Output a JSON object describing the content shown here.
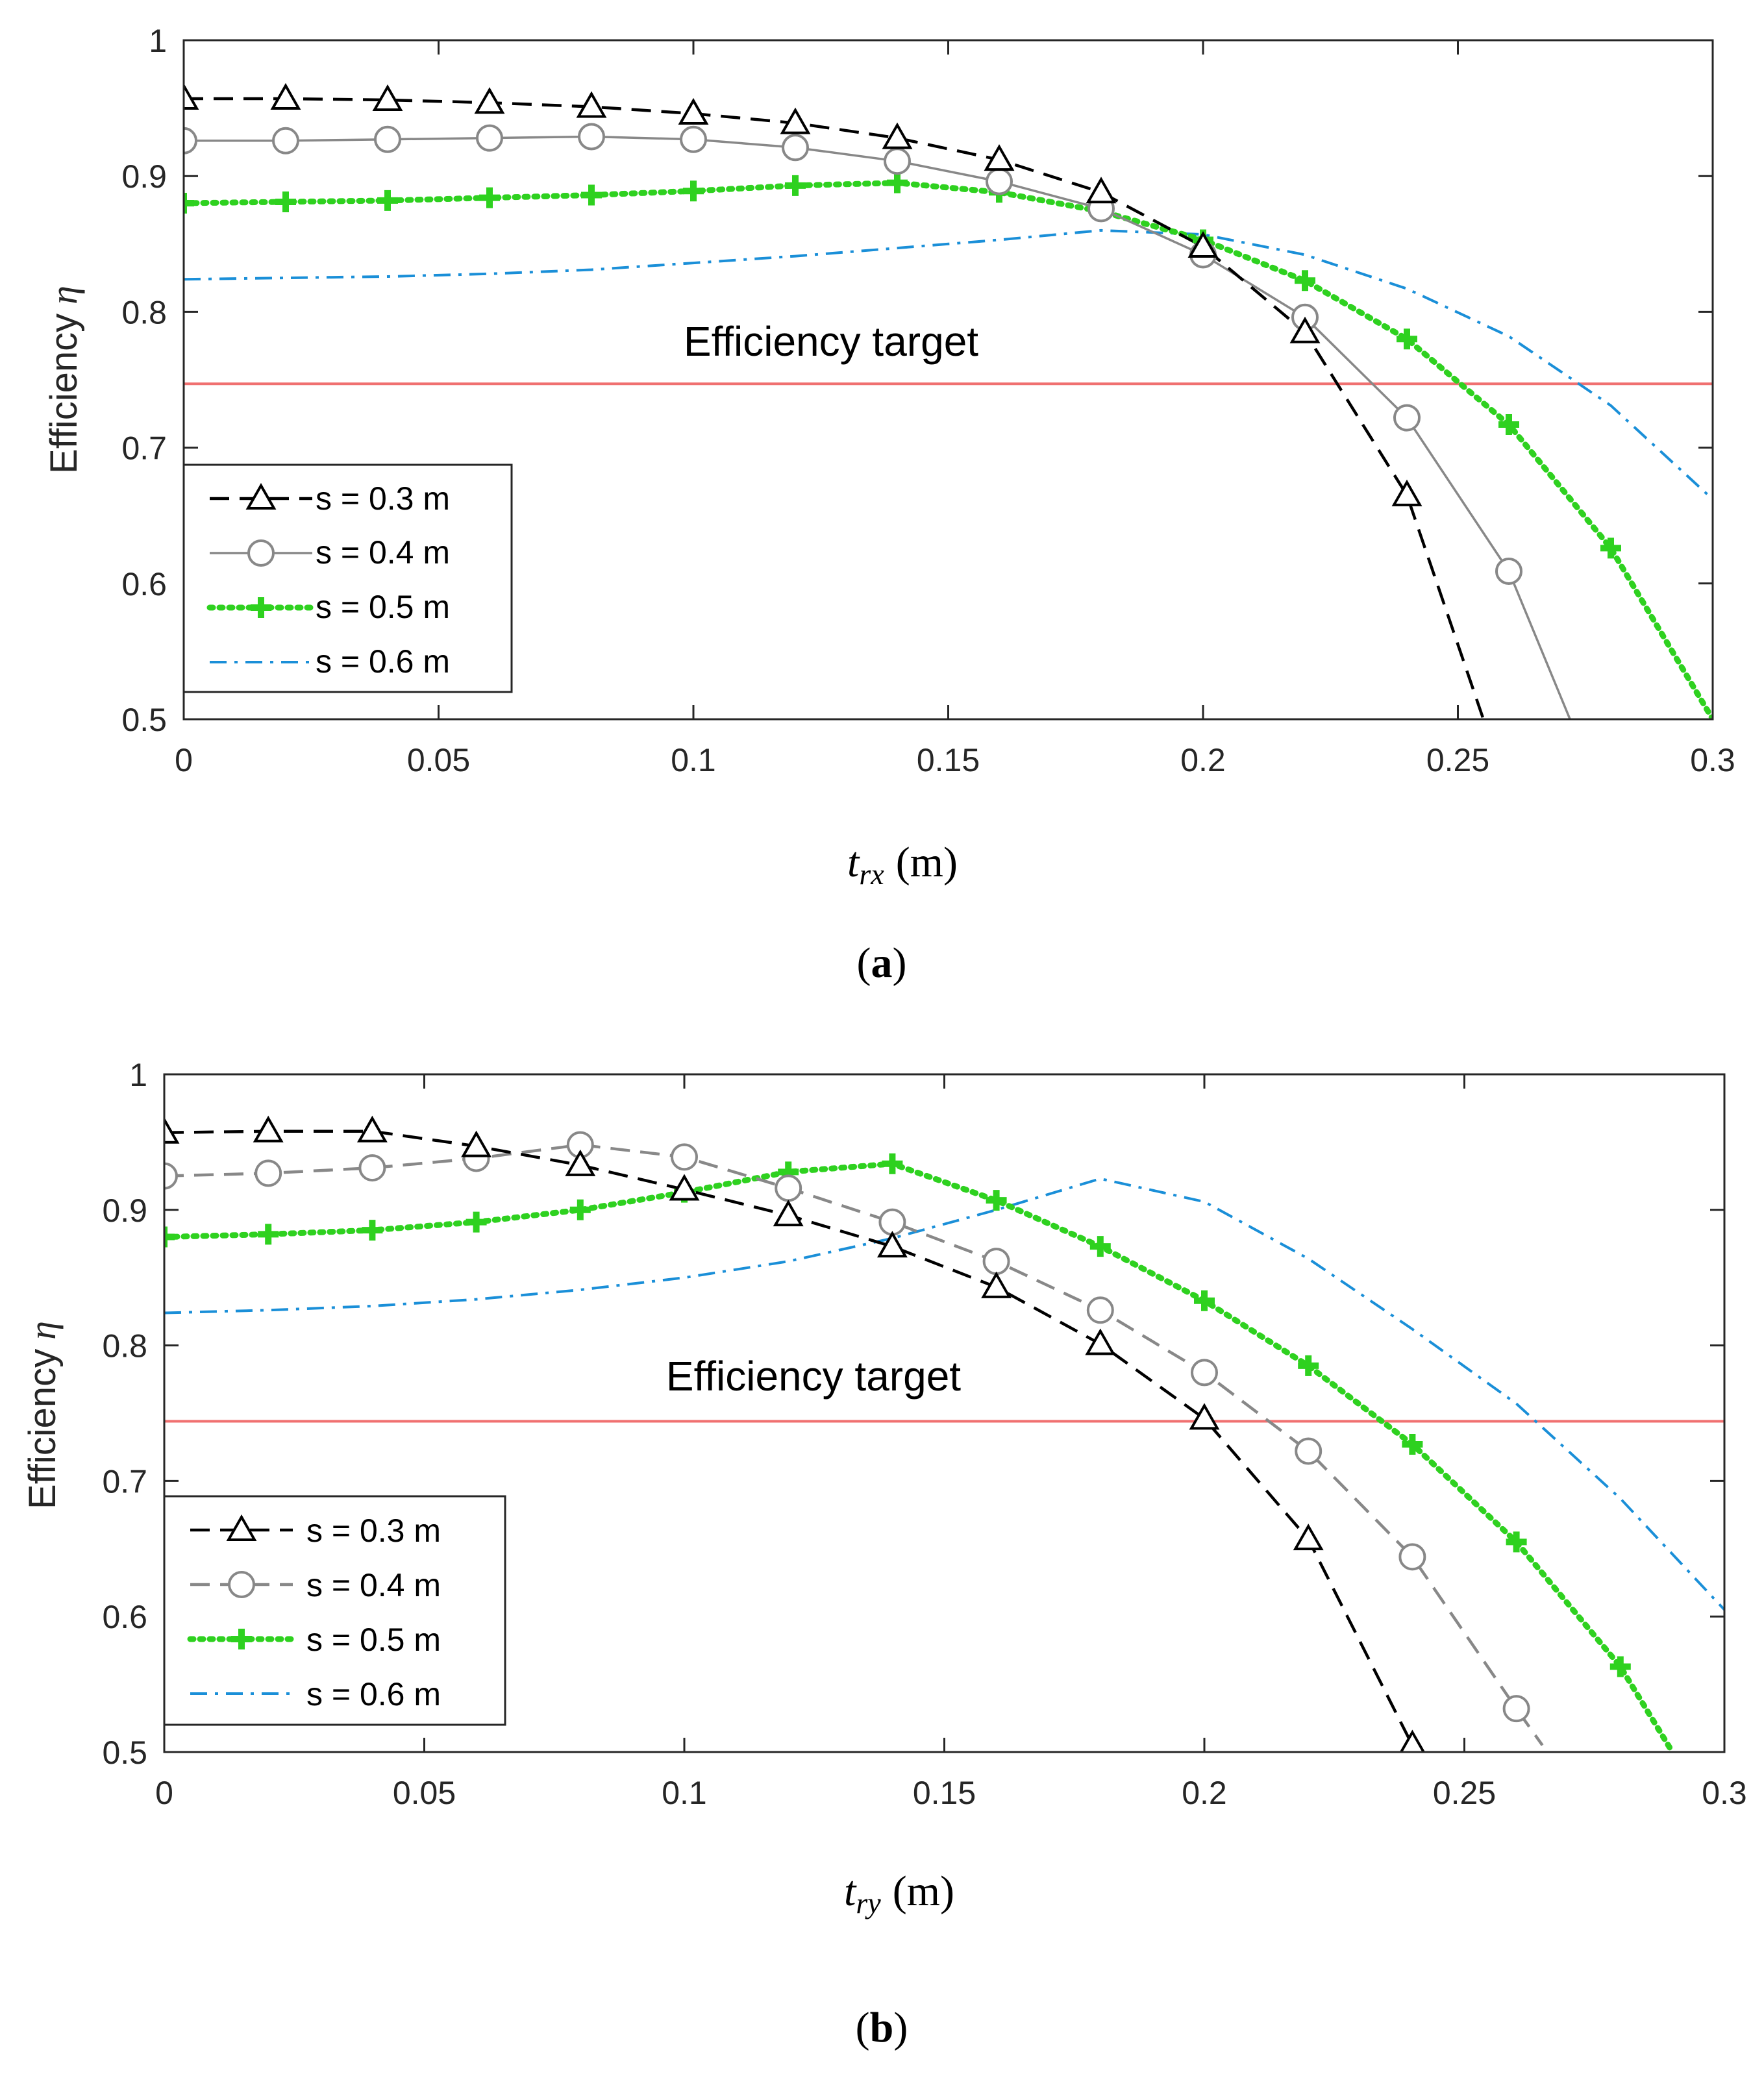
{
  "chart_data": [
    {
      "type": "line",
      "panel_label": "a",
      "xlabel": {
        "symbol": "t",
        "subscript": "rx",
        "unit": "(m)"
      },
      "ylabel": {
        "text": "Efficiency",
        "symbol": "η"
      },
      "xlim": [
        0,
        0.3
      ],
      "ylim": [
        0.5,
        1
      ],
      "xticks": [
        "0",
        "0.05",
        "0.1",
        "0.15",
        "0.2",
        "0.25",
        "0.3"
      ],
      "yticks": [
        "0.5",
        "0.6",
        "0.7",
        "0.8",
        "0.9",
        "1"
      ],
      "grid": false,
      "legend_position": "lower-left",
      "annotation": "Efficiency target",
      "target": 0.747,
      "target_color": "#f07070",
      "series": [
        {
          "name": "s = 0.3 m",
          "color": "#000000",
          "dash": "dashed",
          "marker": "triangle",
          "x": [
            0,
            0.02,
            0.04,
            0.06,
            0.08,
            0.1,
            0.12,
            0.14,
            0.16,
            0.18,
            0.2,
            0.22,
            0.24,
            0.255
          ],
          "y": [
            0.957,
            0.957,
            0.956,
            0.954,
            0.951,
            0.946,
            0.939,
            0.928,
            0.912,
            0.888,
            0.848,
            0.785,
            0.665,
            0.5
          ],
          "marked": [
            true,
            true,
            true,
            true,
            true,
            true,
            true,
            true,
            true,
            true,
            true,
            true,
            true,
            false
          ]
        },
        {
          "name": "s = 0.4 m",
          "color": "#888888",
          "dash": "solid",
          "marker": "circle",
          "x": [
            0,
            0.02,
            0.04,
            0.06,
            0.08,
            0.1,
            0.12,
            0.14,
            0.16,
            0.18,
            0.2,
            0.22,
            0.24,
            0.26,
            0.272
          ],
          "y": [
            0.926,
            0.926,
            0.927,
            0.928,
            0.929,
            0.927,
            0.921,
            0.911,
            0.896,
            0.876,
            0.842,
            0.796,
            0.722,
            0.609,
            0.5
          ],
          "marked": [
            true,
            true,
            true,
            true,
            true,
            true,
            true,
            true,
            true,
            true,
            true,
            true,
            true,
            true,
            false
          ]
        },
        {
          "name": "s = 0.5 m",
          "color": "#2ed11f",
          "dash": "dotted",
          "marker": "plus",
          "x": [
            0,
            0.02,
            0.04,
            0.06,
            0.08,
            0.1,
            0.12,
            0.14,
            0.16,
            0.18,
            0.2,
            0.22,
            0.24,
            0.26,
            0.28,
            0.3
          ],
          "y": [
            0.88,
            0.881,
            0.882,
            0.884,
            0.886,
            0.889,
            0.893,
            0.895,
            0.888,
            0.874,
            0.853,
            0.823,
            0.78,
            0.717,
            0.626,
            0.5
          ],
          "marked": [
            true,
            true,
            true,
            true,
            true,
            true,
            true,
            true,
            true,
            true,
            true,
            true,
            true,
            true,
            true,
            false
          ]
        },
        {
          "name": "s = 0.6 m",
          "color": "#1a8fd8",
          "dash": "dashdot",
          "marker": "none",
          "x": [
            0,
            0.02,
            0.04,
            0.06,
            0.08,
            0.1,
            0.12,
            0.14,
            0.16,
            0.18,
            0.2,
            0.22,
            0.24,
            0.26,
            0.28,
            0.3
          ],
          "y": [
            0.824,
            0.825,
            0.826,
            0.828,
            0.831,
            0.836,
            0.841,
            0.847,
            0.853,
            0.86,
            0.857,
            0.842,
            0.817,
            0.782,
            0.731,
            0.662
          ],
          "marked": []
        }
      ]
    },
    {
      "type": "line",
      "panel_label": "b",
      "xlabel": {
        "symbol": "t",
        "subscript": "ry",
        "unit": "(m)"
      },
      "ylabel": {
        "text": "Efficiency",
        "symbol": "η"
      },
      "xlim": [
        0,
        0.3
      ],
      "ylim": [
        0.5,
        1
      ],
      "xticks": [
        "0",
        "0.05",
        "0.1",
        "0.15",
        "0.2",
        "0.25",
        "0.3"
      ],
      "yticks": [
        "0.5",
        "0.6",
        "0.7",
        "0.8",
        "0.9",
        "1"
      ],
      "grid": false,
      "legend_position": "lower-left",
      "annotation": "Efficiency target",
      "target": 0.744,
      "target_color": "#f07070",
      "series": [
        {
          "name": "s = 0.3 m",
          "color": "#000000",
          "dash": "dashed",
          "marker": "triangle",
          "x": [
            0,
            0.02,
            0.04,
            0.06,
            0.08,
            0.1,
            0.12,
            0.14,
            0.16,
            0.18,
            0.2,
            0.22,
            0.24,
            0.245
          ],
          "y": [
            0.957,
            0.958,
            0.958,
            0.947,
            0.933,
            0.915,
            0.896,
            0.873,
            0.843,
            0.801,
            0.746,
            0.657,
            0.505,
            0.49
          ],
          "marked": [
            true,
            true,
            true,
            true,
            true,
            true,
            true,
            true,
            true,
            true,
            true,
            true,
            true,
            false
          ]
        },
        {
          "name": "s = 0.4 m",
          "color": "#888888",
          "dash": "dashed",
          "marker": "circle",
          "x": [
            0,
            0.02,
            0.04,
            0.06,
            0.08,
            0.1,
            0.12,
            0.14,
            0.16,
            0.18,
            0.2,
            0.22,
            0.24,
            0.26,
            0.265
          ],
          "y": [
            0.925,
            0.927,
            0.931,
            0.938,
            0.948,
            0.939,
            0.916,
            0.891,
            0.862,
            0.826,
            0.78,
            0.722,
            0.644,
            0.532,
            0.505
          ],
          "marked": [
            true,
            true,
            true,
            true,
            true,
            true,
            true,
            true,
            true,
            true,
            true,
            true,
            true,
            true,
            false
          ]
        },
        {
          "name": "s = 0.5 m",
          "color": "#2ed11f",
          "dash": "dotted",
          "marker": "plus",
          "x": [
            0,
            0.02,
            0.04,
            0.06,
            0.08,
            0.1,
            0.12,
            0.14,
            0.16,
            0.18,
            0.2,
            0.22,
            0.24,
            0.26,
            0.28,
            0.29
          ],
          "y": [
            0.88,
            0.882,
            0.885,
            0.891,
            0.9,
            0.913,
            0.928,
            0.934,
            0.907,
            0.873,
            0.833,
            0.785,
            0.727,
            0.655,
            0.563,
            0.5
          ],
          "marked": [
            true,
            true,
            true,
            true,
            true,
            true,
            true,
            true,
            true,
            true,
            true,
            true,
            true,
            true,
            true,
            false
          ]
        },
        {
          "name": "s = 0.6 m",
          "color": "#1a8fd8",
          "dash": "dashdot",
          "marker": "none",
          "x": [
            0,
            0.02,
            0.04,
            0.06,
            0.08,
            0.1,
            0.12,
            0.14,
            0.16,
            0.18,
            0.2,
            0.22,
            0.24,
            0.26,
            0.28,
            0.3
          ],
          "y": [
            0.824,
            0.826,
            0.829,
            0.834,
            0.841,
            0.85,
            0.862,
            0.879,
            0.9,
            0.923,
            0.906,
            0.864,
            0.812,
            0.757,
            0.687,
            0.605
          ],
          "marked": []
        }
      ]
    }
  ]
}
